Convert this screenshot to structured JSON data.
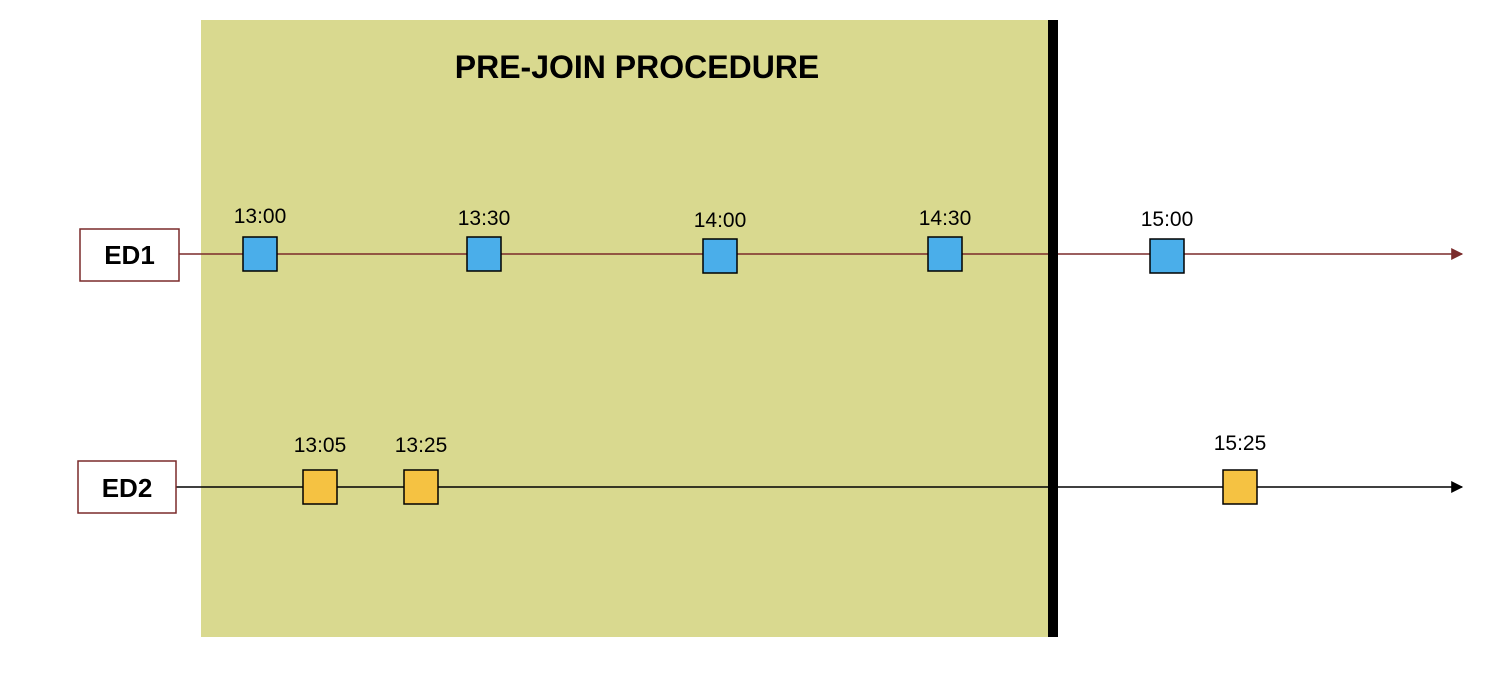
{
  "diagram": {
    "region": {
      "title": "PRE-JOIN PROCEDURE",
      "fill_color": "#d9d98f",
      "boundary_color": "#000000"
    },
    "timelines": [
      {
        "device": "ED1",
        "line_color": "#7a2a2a",
        "box_border_color": "#7a2a2a",
        "marker_color": "#4aaeea",
        "events": [
          "13:00",
          "13:30",
          "14:00",
          "14:30",
          "15:00"
        ]
      },
      {
        "device": "ED2",
        "line_color": "#000000",
        "box_border_color": "#7a2a2a",
        "marker_color": "#f5c242",
        "events": [
          "13:05",
          "13:25",
          "15:25"
        ]
      }
    ]
  }
}
